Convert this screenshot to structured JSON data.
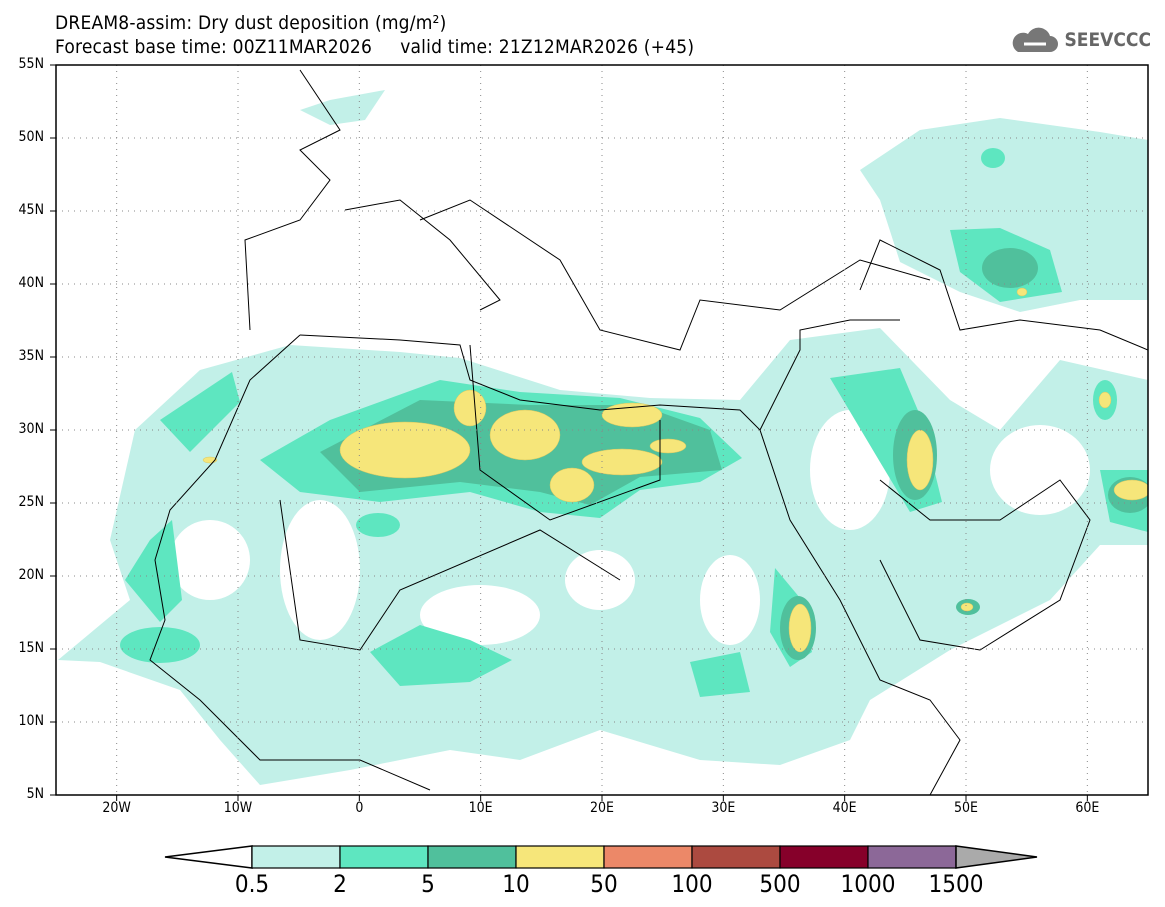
{
  "header": {
    "title": "DREAM8-assim: Dry dust deposition (mg/m²)",
    "base_time": "Forecast base time: 00Z11MAR2026",
    "valid_time": "valid time: 21Z12MAR2026 (+45)"
  },
  "logo": {
    "text": "SEEVCCC",
    "icon": "cloud-icon"
  },
  "map": {
    "lon_range": [
      -25,
      65
    ],
    "lat_range": [
      5,
      55
    ],
    "lat_labels": [
      "55N",
      "50N",
      "45N",
      "40N",
      "35N",
      "30N",
      "25N",
      "20N",
      "15N",
      "10N",
      "5N"
    ],
    "lon_labels": [
      "20W",
      "10W",
      "0",
      "10E",
      "20E",
      "30E",
      "40E",
      "50E",
      "60E"
    ]
  },
  "colorbar": {
    "labels": [
      "0.5",
      "2",
      "5",
      "10",
      "50",
      "100",
      "500",
      "1000",
      "1500"
    ],
    "colors": [
      "#c2f0e8",
      "#5ee6c0",
      "#50c09c",
      "#f6e67a",
      "#ec8868",
      "#ac4a40",
      "#86002a",
      "#8c6898"
    ],
    "over_color": "#aaaaaa",
    "under_color": "#ffffff"
  }
}
